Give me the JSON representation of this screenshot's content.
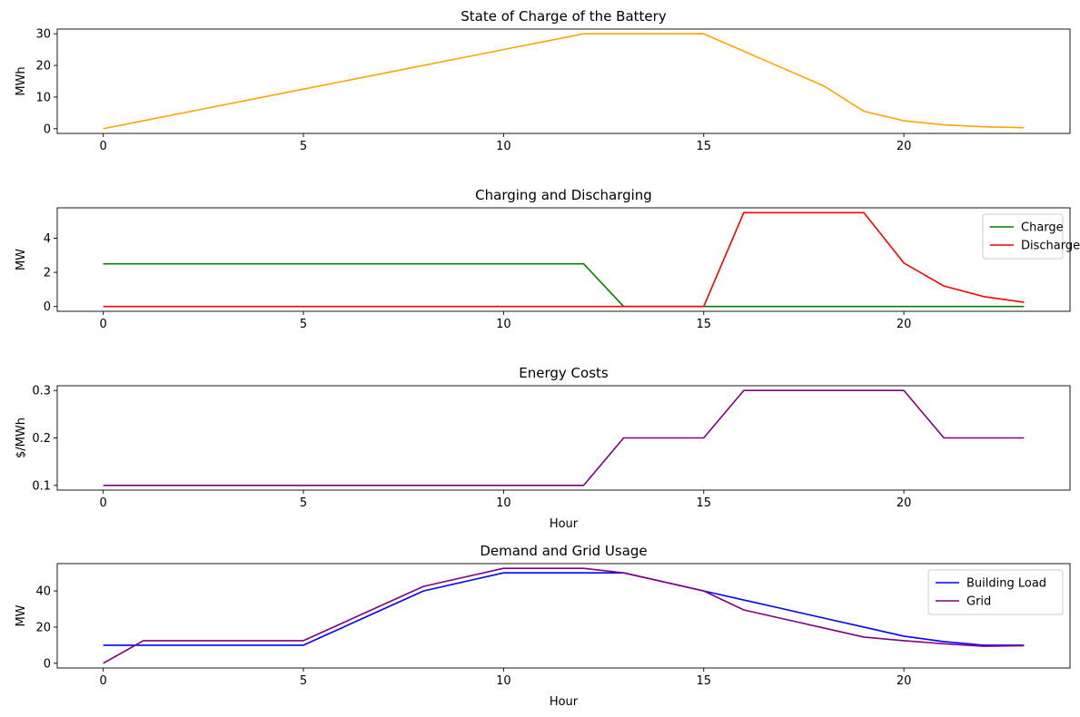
{
  "chart_data": [
    {
      "type": "line",
      "title": "State of Charge of the Battery",
      "xlabel": "",
      "ylabel": "MWh",
      "xlim": [
        -1.15,
        24.15
      ],
      "ylim": [
        -1.5,
        31.5
      ],
      "xticks": [
        0,
        5,
        10,
        15,
        20
      ],
      "yticks": [
        0,
        10,
        20,
        30
      ],
      "legend": null,
      "series": [
        {
          "color": "#ffa500",
          "x": [
            0,
            1,
            2,
            3,
            4,
            5,
            6,
            7,
            8,
            9,
            10,
            11,
            12,
            13,
            14,
            15,
            16,
            17,
            18,
            19,
            20,
            21,
            22,
            23
          ],
          "y": [
            0,
            2.5,
            5,
            7.5,
            10,
            12.5,
            15,
            17.5,
            20,
            22.5,
            25,
            27.5,
            30,
            30,
            30,
            30,
            24.5,
            19,
            13.5,
            5.5,
            2.5,
            1.2,
            0.6,
            0.3
          ]
        }
      ]
    },
    {
      "type": "line",
      "title": "Charging and Discharging",
      "xlabel": "",
      "ylabel": "MW",
      "xlim": [
        -1.15,
        24.15
      ],
      "ylim": [
        -0.28,
        5.78
      ],
      "xticks": [
        0,
        5,
        10,
        15,
        20
      ],
      "yticks": [
        0,
        2,
        4
      ],
      "legend": "top-right",
      "series": [
        {
          "name": "Charge",
          "color": "#008000",
          "x": [
            0,
            1,
            2,
            3,
            4,
            5,
            6,
            7,
            8,
            9,
            10,
            11,
            12,
            13,
            14,
            15,
            16,
            17,
            18,
            19,
            20,
            21,
            22,
            23
          ],
          "y": [
            2.5,
            2.5,
            2.5,
            2.5,
            2.5,
            2.5,
            2.5,
            2.5,
            2.5,
            2.5,
            2.5,
            2.5,
            2.5,
            0,
            0,
            0,
            0,
            0,
            0,
            0,
            0,
            0,
            0,
            0
          ]
        },
        {
          "name": "Discharge",
          "color": "#ff0000",
          "x": [
            0,
            1,
            2,
            3,
            4,
            5,
            6,
            7,
            8,
            9,
            10,
            11,
            12,
            13,
            14,
            15,
            16,
            17,
            18,
            19,
            20,
            21,
            22,
            23
          ],
          "y": [
            0,
            0,
            0,
            0,
            0,
            0,
            0,
            0,
            0,
            0,
            0,
            0,
            0,
            0,
            0,
            0,
            5.5,
            5.5,
            5.5,
            5.5,
            2.55,
            1.2,
            0.58,
            0.25
          ]
        }
      ]
    },
    {
      "type": "line",
      "title": "Energy Costs",
      "xlabel": "Hour",
      "ylabel": "$/MWh",
      "xlim": [
        -1.15,
        24.15
      ],
      "ylim": [
        0.09,
        0.31
      ],
      "xticks": [
        0,
        5,
        10,
        15,
        20
      ],
      "yticks": [
        0.1,
        0.2,
        0.3
      ],
      "legend": null,
      "series": [
        {
          "color": "#800080",
          "x": [
            0,
            1,
            2,
            3,
            4,
            5,
            6,
            7,
            8,
            9,
            10,
            11,
            12,
            13,
            14,
            15,
            16,
            17,
            18,
            19,
            20,
            21,
            22,
            23
          ],
          "y": [
            0.1,
            0.1,
            0.1,
            0.1,
            0.1,
            0.1,
            0.1,
            0.1,
            0.1,
            0.1,
            0.1,
            0.1,
            0.1,
            0.2,
            0.2,
            0.2,
            0.3,
            0.3,
            0.3,
            0.3,
            0.3,
            0.2,
            0.2,
            0.2
          ]
        }
      ]
    },
    {
      "type": "line",
      "title": "Demand and Grid Usage",
      "xlabel": "Hour",
      "ylabel": "MW",
      "xlim": [
        -1.15,
        24.15
      ],
      "ylim": [
        -2.6,
        55.1
      ],
      "xticks": [
        0,
        5,
        10,
        15,
        20
      ],
      "yticks": [
        0,
        20,
        40
      ],
      "legend": "top-right",
      "series": [
        {
          "name": "Building Load",
          "color": "#0000ff",
          "x": [
            0,
            1,
            2,
            3,
            4,
            5,
            6,
            7,
            8,
            9,
            10,
            11,
            12,
            13,
            14,
            15,
            16,
            17,
            18,
            19,
            20,
            21,
            22,
            23
          ],
          "y": [
            10,
            10,
            10,
            10,
            10,
            10,
            20,
            30,
            40,
            45,
            50,
            50,
            50,
            50,
            45,
            40,
            35,
            30,
            25,
            20,
            15,
            12,
            10,
            10
          ]
        },
        {
          "name": "Grid",
          "color": "#800080",
          "x": [
            0,
            1,
            2,
            3,
            4,
            5,
            6,
            7,
            8,
            9,
            10,
            11,
            12,
            13,
            14,
            15,
            16,
            17,
            18,
            19,
            20,
            21,
            22,
            23
          ],
          "y": [
            0,
            12.5,
            12.5,
            12.5,
            12.5,
            12.5,
            22.5,
            32.5,
            42.5,
            47.5,
            52.5,
            52.5,
            52.5,
            50,
            45,
            40,
            29.5,
            24.5,
            19.5,
            14.5,
            12.5,
            10.8,
            9.4,
            9.75
          ]
        }
      ]
    }
  ]
}
